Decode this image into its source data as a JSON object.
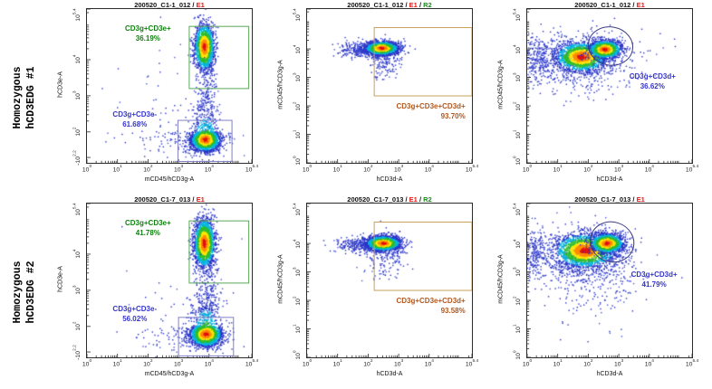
{
  "rows": [
    {
      "label_line1": "Homozygous",
      "label_line2": "hCD3EDG #1"
    },
    {
      "label_line1": "Homozygous",
      "label_line2": "hCD3EDG #2"
    }
  ],
  "palette": {
    "title_red": "#e81212",
    "title_green": "#159015",
    "gate_green_stroke": "#5aa85a",
    "gate_green_text": "#128012",
    "gate_blue_stroke": "#8080c8",
    "gate_blue_text": "#3535cd",
    "gate_brown_stroke": "#c9a05a",
    "gate_brown_text": "#b2571c",
    "gate_ellipse_stroke": "#3b3b85",
    "axis_color": "#2b2b2b",
    "dot_blue": "#2a35c8"
  },
  "chart_data": [
    {
      "type": "scatter",
      "id": "r1c1",
      "title_parts": [
        {
          "text": "200520_C1-1_012 / ",
          "color": "#111111"
        },
        {
          "text": "E1",
          "color": "#e81212"
        }
      ],
      "x_label": "mCD45/hCD3g-A",
      "y_label": "hCD3e-A",
      "x_scale": "log",
      "y_scale": "biexp",
      "x_range_exp": [
        0,
        5.4
      ],
      "y_range_exp": [
        -2.2,
        5.4
      ],
      "x_ticks": [
        "10^0",
        "10^1",
        "10^2",
        "10^3",
        "10^4",
        "10^5.4"
      ],
      "y_ticks": [
        "-10^2.2",
        "10^2",
        "10^3",
        "10^4",
        "10^5.4"
      ],
      "gates": [
        {
          "shape": "rect",
          "x1": 3.35,
          "x2": 5.3,
          "y1": 3.2,
          "y2": 4.92,
          "stroke": "#5aa85a",
          "label": "CD3g+CD3e+",
          "percent": "36.19%",
          "label_color": "#128012",
          "label_x": 0.37,
          "label_y": 0.095,
          "label_align": "center"
        },
        {
          "shape": "rect",
          "x1": 2.98,
          "x2": 4.75,
          "y1": -2.0,
          "y2": 2.32,
          "stroke": "#8080c8",
          "label": "CD3g+CD3e-",
          "percent": "61.68%",
          "label_color": "#3535cd",
          "label_x": 0.29,
          "label_y": 0.65,
          "label_align": "center"
        }
      ],
      "clusters": [
        {
          "x": 3.92,
          "y": 3.0,
          "sx": 0.18,
          "sy": 0.85,
          "n": 230,
          "density": false
        },
        {
          "x": 3.3,
          "y": 0.9,
          "sx": 0.8,
          "sy": 1.2,
          "n": 130,
          "density": false
        },
        {
          "x": 2.3,
          "y": 2.5,
          "sx": 0.8,
          "sy": 1.0,
          "n": 40,
          "density": false
        },
        {
          "x": 3.85,
          "y": 4.35,
          "sx": 0.16,
          "sy": 0.32,
          "n": 1700,
          "density": true
        },
        {
          "x": 3.88,
          "y": 0.95,
          "sx": 0.24,
          "sy": 0.8,
          "n": 2300,
          "density": true
        }
      ]
    },
    {
      "type": "scatter",
      "id": "r1c2",
      "title_parts": [
        {
          "text": "200520_C1-1_012 / ",
          "color": "#111111"
        },
        {
          "text": "E1",
          "color": "#e81212"
        },
        {
          "text": " / ",
          "color": "#111111"
        },
        {
          "text": "R2",
          "color": "#159015"
        }
      ],
      "x_label": "hCD3d-A",
      "y_label": "mCD45/hCD3g-A",
      "x_scale": "log",
      "y_scale": "log",
      "x_range_exp": [
        0,
        5.4
      ],
      "y_range_exp": [
        0,
        5.4
      ],
      "x_ticks": [
        "10^0",
        "10^1",
        "10^2",
        "10^3",
        "10^4",
        "10^5.4"
      ],
      "y_ticks": [
        "10^0",
        "10^1",
        "10^2",
        "10^3",
        "10^4",
        "10^5.4"
      ],
      "gates": [
        {
          "shape": "rect",
          "x1": 2.2,
          "x2": 5.4,
          "y1": 2.35,
          "y2": 4.75,
          "stroke": "#c9a05a",
          "label": "CD3g+CD3e+CD3d+",
          "percent": "93.70%",
          "label_color": "#b2571c",
          "label_x": 0.96,
          "label_y": 0.6,
          "label_align": "right"
        }
      ],
      "clusters": [
        {
          "x": 1.75,
          "y": 3.98,
          "sx": 0.4,
          "sy": 0.13,
          "n": 260,
          "density": false
        },
        {
          "x": 2.5,
          "y": 3.55,
          "sx": 0.28,
          "sy": 0.3,
          "n": 150,
          "density": false
        },
        {
          "x": 2.45,
          "y": 4.02,
          "sx": 0.27,
          "sy": 0.12,
          "n": 2100,
          "density": true
        }
      ]
    },
    {
      "type": "scatter",
      "id": "r1c3",
      "title_parts": [
        {
          "text": "200520_C1-1_012 / ",
          "color": "#111111"
        },
        {
          "text": "E1",
          "color": "#e81212"
        }
      ],
      "x_label": "hCD3d-A",
      "y_label": "mCD45/hCD3g-A",
      "x_scale": "log",
      "y_scale": "log",
      "x_range_exp": [
        0,
        5.4
      ],
      "y_range_exp": [
        0,
        5.4
      ],
      "x_ticks": [
        "10^0",
        "10^1",
        "10^2",
        "10^3",
        "10^4",
        "10^5.4"
      ],
      "y_ticks": [
        "10^0",
        "10^1",
        "10^2",
        "10^3",
        "10^4",
        "10^5.4"
      ],
      "gates": [
        {
          "shape": "ellipse",
          "cx": 2.73,
          "cy": 4.1,
          "rx": 0.73,
          "ry": 0.67,
          "rotate": 10,
          "stroke": "#3b3b85",
          "label": "CD3g+CD3d+",
          "percent": "36.62%",
          "label_color": "#3535cd",
          "label_x": 0.76,
          "label_y": 0.405,
          "label_align": "center"
        }
      ],
      "clusters": [
        {
          "x": 1.7,
          "y": 3.5,
          "sx": 0.85,
          "sy": 0.5,
          "n": 600,
          "density": false
        },
        {
          "x": 0.28,
          "y": 3.62,
          "sx": 0.28,
          "sy": 0.42,
          "n": 240,
          "density": false
        },
        {
          "x": 3.8,
          "y": 3.95,
          "sx": 0.7,
          "sy": 0.35,
          "n": 18,
          "density": false
        },
        {
          "x": 1.78,
          "y": 3.72,
          "sx": 0.42,
          "sy": 0.26,
          "n": 1700,
          "density": true
        },
        {
          "x": 2.55,
          "y": 3.98,
          "sx": 0.26,
          "sy": 0.16,
          "n": 1400,
          "density": true
        }
      ]
    },
    {
      "type": "scatter",
      "id": "r2c1",
      "title_parts": [
        {
          "text": "200520_C1-7_013 / ",
          "color": "#111111"
        },
        {
          "text": "E1",
          "color": "#e81212"
        }
      ],
      "x_label": "mCD45/hCD3g-A",
      "y_label": "hCD3e-A",
      "x_scale": "log",
      "y_scale": "biexp",
      "x_range_exp": [
        0,
        5.4
      ],
      "y_range_exp": [
        -2.2,
        5.4
      ],
      "x_ticks": [
        "10^0",
        "10^1",
        "10^2",
        "10^3",
        "10^4",
        "10^5.4"
      ],
      "y_ticks": [
        "-10^2.2",
        "10^2",
        "10^3",
        "10^4",
        "10^5.4"
      ],
      "gates": [
        {
          "shape": "rect",
          "x1": 3.35,
          "x2": 5.3,
          "y1": 3.2,
          "y2": 4.92,
          "stroke": "#5aa85a",
          "label": "CD3g+CD3e+",
          "percent": "41.78%",
          "label_color": "#128012",
          "label_x": 0.37,
          "label_y": 0.095,
          "label_align": "center"
        },
        {
          "shape": "rect",
          "x1": 3.0,
          "x2": 4.8,
          "y1": -2.0,
          "y2": 2.25,
          "stroke": "#8080c8",
          "label": "CD3g+CD3e-",
          "percent": "56.02%",
          "label_color": "#3535cd",
          "label_x": 0.29,
          "label_y": 0.65,
          "label_align": "center"
        }
      ],
      "clusters": [
        {
          "x": 3.95,
          "y": 3.0,
          "sx": 0.2,
          "sy": 0.9,
          "n": 260,
          "density": false
        },
        {
          "x": 3.3,
          "y": 0.9,
          "sx": 0.85,
          "sy": 1.2,
          "n": 150,
          "density": false
        },
        {
          "x": 3.85,
          "y": 4.3,
          "sx": 0.17,
          "sy": 0.34,
          "n": 1900,
          "density": true
        },
        {
          "x": 3.9,
          "y": 0.95,
          "sx": 0.26,
          "sy": 0.85,
          "n": 2300,
          "density": true
        }
      ]
    },
    {
      "type": "scatter",
      "id": "r2c2",
      "title_parts": [
        {
          "text": "200520_C1-7_013 / ",
          "color": "#111111"
        },
        {
          "text": "E1",
          "color": "#e81212"
        },
        {
          "text": " / ",
          "color": "#111111"
        },
        {
          "text": "R2",
          "color": "#159015"
        }
      ],
      "x_label": "hCD3d-A",
      "y_label": "mCD45/hCD3g-A",
      "x_scale": "log",
      "y_scale": "log",
      "x_range_exp": [
        0,
        5.4
      ],
      "y_range_exp": [
        0,
        5.4
      ],
      "x_ticks": [
        "10^0",
        "10^1",
        "10^2",
        "10^3",
        "10^4",
        "10^5.4"
      ],
      "y_ticks": [
        "10^0",
        "10^1",
        "10^2",
        "10^3",
        "10^4",
        "10^5.4"
      ],
      "gates": [
        {
          "shape": "rect",
          "x1": 2.2,
          "x2": 5.4,
          "y1": 2.35,
          "y2": 4.75,
          "stroke": "#c9a05a",
          "label": "CD3g+CD3e+CD3d+",
          "percent": "93.58%",
          "label_color": "#b2571c",
          "label_x": 0.96,
          "label_y": 0.6,
          "label_align": "right"
        }
      ],
      "clusters": [
        {
          "x": 1.8,
          "y": 3.95,
          "sx": 0.42,
          "sy": 0.14,
          "n": 280,
          "density": false
        },
        {
          "x": 2.55,
          "y": 3.5,
          "sx": 0.3,
          "sy": 0.32,
          "n": 160,
          "density": false
        },
        {
          "x": 2.5,
          "y": 4.0,
          "sx": 0.28,
          "sy": 0.13,
          "n": 2200,
          "density": true
        }
      ]
    },
    {
      "type": "scatter",
      "id": "r2c3",
      "title_parts": [
        {
          "text": "200520_C1-7_013 / ",
          "color": "#111111"
        },
        {
          "text": "E1",
          "color": "#e81212"
        }
      ],
      "x_label": "hCD3d-A",
      "y_label": "mCD45/hCD3g-A",
      "x_scale": "log",
      "y_scale": "log",
      "x_range_exp": [
        0,
        5.4
      ],
      "y_range_exp": [
        0,
        5.4
      ],
      "x_ticks": [
        "10^0",
        "10^1",
        "10^2",
        "10^3",
        "10^4",
        "10^5.4"
      ],
      "y_ticks": [
        "10^0",
        "10^1",
        "10^2",
        "10^3",
        "10^4",
        "10^5.4"
      ],
      "gates": [
        {
          "shape": "ellipse",
          "cx": 2.78,
          "cy": 4.05,
          "rx": 0.72,
          "ry": 0.7,
          "rotate": 18,
          "stroke": "#3b3b85",
          "label": "CD3g+CD3d+",
          "percent": "41.79%",
          "label_color": "#3535cd",
          "label_x": 0.77,
          "label_y": 0.43,
          "label_align": "center"
        }
      ],
      "clusters": [
        {
          "x": 1.8,
          "y": 3.4,
          "sx": 0.9,
          "sy": 0.55,
          "n": 650,
          "density": false
        },
        {
          "x": 0.25,
          "y": 3.65,
          "sx": 0.25,
          "sy": 0.45,
          "n": 200,
          "density": false
        },
        {
          "x": 2.2,
          "y": 2.3,
          "sx": 0.7,
          "sy": 0.7,
          "n": 90,
          "density": false
        },
        {
          "x": 1.9,
          "y": 3.75,
          "sx": 0.5,
          "sy": 0.3,
          "n": 2000,
          "density": true
        },
        {
          "x": 2.62,
          "y": 4.0,
          "sx": 0.27,
          "sy": 0.17,
          "n": 1500,
          "density": true
        }
      ]
    }
  ]
}
